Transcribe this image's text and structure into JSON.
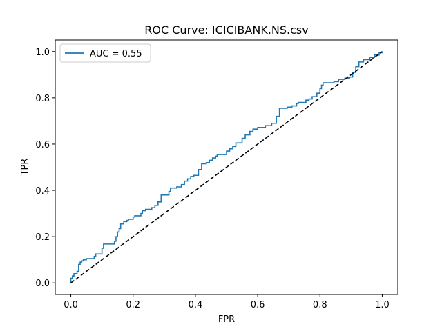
{
  "chart_data": {
    "type": "line",
    "title": "ROC Curve: ICICIBANK.NS.csv",
    "xlabel": "FPR",
    "ylabel": "TPR",
    "xlim": [
      -0.05,
      1.05
    ],
    "ylim": [
      -0.05,
      1.05
    ],
    "xticks": [
      "0.0",
      "0.2",
      "0.4",
      "0.6",
      "0.8",
      "1.0"
    ],
    "yticks": [
      "0.0",
      "0.2",
      "0.4",
      "0.6",
      "0.8",
      "1.0"
    ],
    "grid": false,
    "legend_position": "top-left",
    "series": [
      {
        "name": "AUC = 0.55",
        "color": "#1f77b4",
        "style": "solid",
        "points": [
          [
            0.0,
            0.0
          ],
          [
            0.0,
            0.02
          ],
          [
            0.005,
            0.02
          ],
          [
            0.005,
            0.03
          ],
          [
            0.01,
            0.03
          ],
          [
            0.01,
            0.04
          ],
          [
            0.02,
            0.04
          ],
          [
            0.02,
            0.05
          ],
          [
            0.025,
            0.05
          ],
          [
            0.025,
            0.08
          ],
          [
            0.03,
            0.08
          ],
          [
            0.03,
            0.09
          ],
          [
            0.035,
            0.09
          ],
          [
            0.035,
            0.095
          ],
          [
            0.04,
            0.095
          ],
          [
            0.04,
            0.1
          ],
          [
            0.05,
            0.1
          ],
          [
            0.05,
            0.105
          ],
          [
            0.075,
            0.105
          ],
          [
            0.075,
            0.115
          ],
          [
            0.08,
            0.115
          ],
          [
            0.08,
            0.125
          ],
          [
            0.1,
            0.125
          ],
          [
            0.1,
            0.15
          ],
          [
            0.105,
            0.15
          ],
          [
            0.105,
            0.168
          ],
          [
            0.14,
            0.168
          ],
          [
            0.14,
            0.18
          ],
          [
            0.145,
            0.18
          ],
          [
            0.145,
            0.2
          ],
          [
            0.15,
            0.2
          ],
          [
            0.15,
            0.22
          ],
          [
            0.155,
            0.22
          ],
          [
            0.155,
            0.235
          ],
          [
            0.16,
            0.235
          ],
          [
            0.16,
            0.255
          ],
          [
            0.17,
            0.255
          ],
          [
            0.17,
            0.265
          ],
          [
            0.18,
            0.265
          ],
          [
            0.18,
            0.27
          ],
          [
            0.185,
            0.27
          ],
          [
            0.185,
            0.275
          ],
          [
            0.2,
            0.275
          ],
          [
            0.2,
            0.285
          ],
          [
            0.205,
            0.285
          ],
          [
            0.205,
            0.29
          ],
          [
            0.225,
            0.29
          ],
          [
            0.225,
            0.3
          ],
          [
            0.23,
            0.3
          ],
          [
            0.23,
            0.312
          ],
          [
            0.24,
            0.312
          ],
          [
            0.24,
            0.318
          ],
          [
            0.26,
            0.318
          ],
          [
            0.26,
            0.325
          ],
          [
            0.27,
            0.325
          ],
          [
            0.27,
            0.335
          ],
          [
            0.28,
            0.335
          ],
          [
            0.28,
            0.35
          ],
          [
            0.29,
            0.35
          ],
          [
            0.29,
            0.38
          ],
          [
            0.315,
            0.38
          ],
          [
            0.315,
            0.395
          ],
          [
            0.32,
            0.395
          ],
          [
            0.32,
            0.41
          ],
          [
            0.34,
            0.41
          ],
          [
            0.34,
            0.415
          ],
          [
            0.355,
            0.415
          ],
          [
            0.355,
            0.425
          ],
          [
            0.365,
            0.425
          ],
          [
            0.365,
            0.44
          ],
          [
            0.375,
            0.44
          ],
          [
            0.375,
            0.45
          ],
          [
            0.385,
            0.45
          ],
          [
            0.385,
            0.46
          ],
          [
            0.395,
            0.46
          ],
          [
            0.395,
            0.465
          ],
          [
            0.41,
            0.465
          ],
          [
            0.41,
            0.49
          ],
          [
            0.42,
            0.49
          ],
          [
            0.42,
            0.515
          ],
          [
            0.435,
            0.515
          ],
          [
            0.435,
            0.52
          ],
          [
            0.445,
            0.52
          ],
          [
            0.445,
            0.53
          ],
          [
            0.455,
            0.53
          ],
          [
            0.455,
            0.54
          ],
          [
            0.465,
            0.54
          ],
          [
            0.465,
            0.548
          ],
          [
            0.47,
            0.548
          ],
          [
            0.47,
            0.555
          ],
          [
            0.5,
            0.555
          ],
          [
            0.5,
            0.57
          ],
          [
            0.51,
            0.57
          ],
          [
            0.51,
            0.58
          ],
          [
            0.52,
            0.58
          ],
          [
            0.52,
            0.59
          ],
          [
            0.53,
            0.59
          ],
          [
            0.53,
            0.605
          ],
          [
            0.55,
            0.605
          ],
          [
            0.55,
            0.625
          ],
          [
            0.56,
            0.625
          ],
          [
            0.56,
            0.64
          ],
          [
            0.575,
            0.64
          ],
          [
            0.575,
            0.655
          ],
          [
            0.585,
            0.655
          ],
          [
            0.585,
            0.665
          ],
          [
            0.6,
            0.665
          ],
          [
            0.6,
            0.672
          ],
          [
            0.625,
            0.672
          ],
          [
            0.625,
            0.68
          ],
          [
            0.645,
            0.68
          ],
          [
            0.645,
            0.69
          ],
          [
            0.66,
            0.69
          ],
          [
            0.66,
            0.72
          ],
          [
            0.67,
            0.72
          ],
          [
            0.67,
            0.755
          ],
          [
            0.695,
            0.755
          ],
          [
            0.695,
            0.76
          ],
          [
            0.71,
            0.76
          ],
          [
            0.71,
            0.765
          ],
          [
            0.725,
            0.765
          ],
          [
            0.725,
            0.775
          ],
          [
            0.73,
            0.775
          ],
          [
            0.73,
            0.78
          ],
          [
            0.755,
            0.78
          ],
          [
            0.755,
            0.79
          ],
          [
            0.765,
            0.79
          ],
          [
            0.765,
            0.795
          ],
          [
            0.775,
            0.795
          ],
          [
            0.775,
            0.805
          ],
          [
            0.79,
            0.805
          ],
          [
            0.79,
            0.82
          ],
          [
            0.8,
            0.82
          ],
          [
            0.8,
            0.84
          ],
          [
            0.805,
            0.84
          ],
          [
            0.805,
            0.855
          ],
          [
            0.81,
            0.855
          ],
          [
            0.81,
            0.865
          ],
          [
            0.845,
            0.865
          ],
          [
            0.845,
            0.87
          ],
          [
            0.86,
            0.87
          ],
          [
            0.86,
            0.88
          ],
          [
            0.88,
            0.88
          ],
          [
            0.88,
            0.885
          ],
          [
            0.895,
            0.885
          ],
          [
            0.895,
            0.89
          ],
          [
            0.905,
            0.89
          ],
          [
            0.905,
            0.91
          ],
          [
            0.915,
            0.91
          ],
          [
            0.915,
            0.935
          ],
          [
            0.925,
            0.935
          ],
          [
            0.925,
            0.955
          ],
          [
            0.94,
            0.955
          ],
          [
            0.94,
            0.965
          ],
          [
            0.96,
            0.965
          ],
          [
            0.96,
            0.975
          ],
          [
            0.975,
            0.975
          ],
          [
            0.975,
            0.985
          ],
          [
            0.99,
            0.985
          ],
          [
            0.99,
            0.995
          ],
          [
            1.0,
            0.995
          ],
          [
            1.0,
            1.0
          ]
        ]
      },
      {
        "name": "",
        "color": "#000000",
        "style": "dashed",
        "points": [
          [
            0.0,
            0.0
          ],
          [
            1.0,
            1.0
          ]
        ]
      }
    ]
  }
}
